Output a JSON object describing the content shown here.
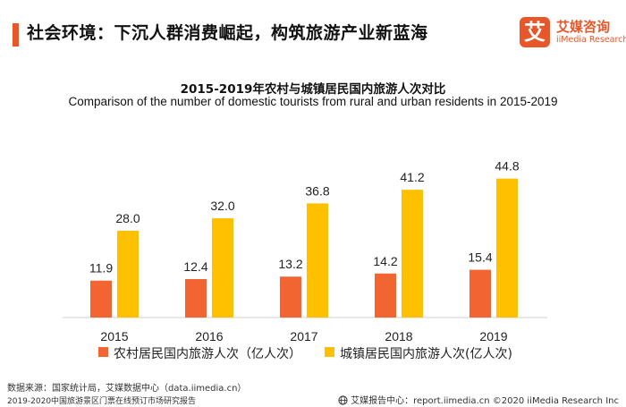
{
  "header": {
    "title": "社会环境：下沉人群消费崛起，构筑旅游产业新蓝海",
    "accent_color": "#e8572a"
  },
  "logo": {
    "mark": "艾",
    "name_cn": "艾媒咨询",
    "name_en": "iiMedia Research",
    "color": "#e8572a"
  },
  "chart_data": {
    "type": "bar",
    "title": "2015-2019年农村与城镇居民国内旅游人次对比",
    "subtitle": "Comparison of  the number of domestic tourists from rural and urban residents in 2015-2019",
    "categories": [
      "2015",
      "2016",
      "2017",
      "2018",
      "2019"
    ],
    "series": [
      {
        "name": "农村居民国内旅游人次（亿人次）",
        "values": [
          11.9,
          12.4,
          13.2,
          14.2,
          15.4
        ],
        "color": "#f26532"
      },
      {
        "name": "城镇居民国内旅游人次(亿人次)",
        "values": [
          28.0,
          32.0,
          36.8,
          41.2,
          44.8
        ],
        "color": "#ffc000"
      }
    ],
    "value_labels": [
      [
        "11.9",
        "12.4",
        "13.2",
        "14.2",
        "15.4"
      ],
      [
        "28.0",
        "32.0",
        "36.8",
        "41.2",
        "44.8"
      ]
    ],
    "ylim": [
      0,
      62
    ],
    "grid": false,
    "legend_position": "bottom"
  },
  "footer": {
    "source": "数据来源：国家统计局，艾媒数据中心（data.iimedia.cn）",
    "note": "2019-2020中国旅游景区门票在线预订市场研究报告",
    "right": "艾媒报告中心：report.iimedia.cn   ©2020  iiMedia Research  Inc"
  }
}
